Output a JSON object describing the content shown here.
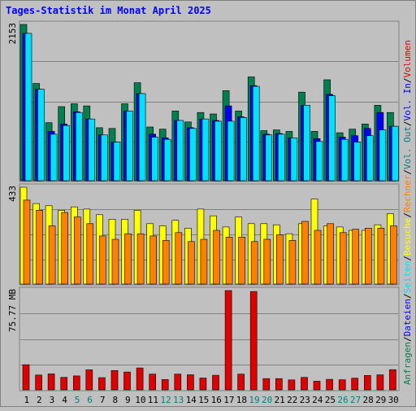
{
  "title": "Tages-Statistik im Monat April 2025",
  "colors": {
    "background": "#c0c0c0",
    "title": "#0000ff",
    "anfragen": "#007f4f",
    "dateien": "#0000ff",
    "seiten": "#00e0ff",
    "besuche": "#ffff00",
    "rechner": "#ff8000",
    "vol_in": "#0000ff",
    "volumen": "#e00000",
    "weekend_label": "#007f7f",
    "weekday_label": "#000000"
  },
  "right_legend": [
    {
      "text": "Anfragen",
      "color": "#007f4f"
    },
    {
      "text": "/",
      "color": "#000000"
    },
    {
      "text": "Dateien",
      "color": "#0000ff"
    },
    {
      "text": "/",
      "color": "#000000"
    },
    {
      "text": "Seiten",
      "color": "#00e0ff"
    },
    {
      "text": "/",
      "color": "#000000"
    },
    {
      "text": "Besuche",
      "color": "#ffff00"
    },
    {
      "text": "/",
      "color": "#000000"
    },
    {
      "text": "Rechner",
      "color": "#ff8000"
    },
    {
      "text": "/",
      "color": "#000000"
    },
    {
      "text": "Vol. Out",
      "color": "#007f7f"
    },
    {
      "text": "/",
      "color": "#000000"
    },
    {
      "text": "Vol. In",
      "color": "#0000ff"
    },
    {
      "text": "/",
      "color": "#000000"
    },
    {
      "text": "Volumen",
      "color": "#e00000"
    }
  ],
  "chart_data": {
    "type": "bar",
    "x": [
      "1",
      "2",
      "3",
      "4",
      "5",
      "6",
      "7",
      "8",
      "9",
      "10",
      "11",
      "12",
      "13",
      "14",
      "15",
      "16",
      "17",
      "18",
      "19",
      "20",
      "21",
      "22",
      "23",
      "24",
      "25",
      "26",
      "27",
      "28",
      "29",
      "30"
    ],
    "weekend_days": [
      "5",
      "6",
      "12",
      "13",
      "19",
      "20",
      "26",
      "27"
    ],
    "panels": [
      {
        "name": "hits",
        "max_label": "2153",
        "ymax": 2153,
        "series": [
          {
            "name": "Anfragen",
            "values": [
              2153,
              1340,
              800,
              1020,
              1060,
              1030,
              730,
              720,
              1060,
              1350,
              740,
              710,
              960,
              810,
              940,
              920,
              1240,
              960,
              1430,
              690,
              700,
              680,
              1220,
              680,
              1390,
              660,
              710,
              780,
              1040,
              940
            ]
          },
          {
            "name": "Dateien",
            "values": [
              2030,
              1260,
              680,
              780,
              950,
              850,
              630,
              530,
              960,
              1200,
              640,
              590,
              830,
              730,
              850,
              830,
              1030,
              880,
              1310,
              640,
              650,
              590,
              1040,
              580,
              1190,
              600,
              620,
              720,
              940,
              750
            ]
          },
          {
            "name": "Seiten",
            "values": [
              2030,
              1260,
              640,
              760,
              940,
              850,
              630,
              530,
              960,
              1200,
              600,
              570,
              830,
              720,
              850,
              820,
              820,
              870,
              1300,
              630,
              640,
              590,
              1040,
              540,
              1170,
              570,
              530,
              620,
              700,
              750
            ]
          }
        ]
      },
      {
        "name": "visits",
        "max_label": "433",
        "ymax": 433,
        "series": [
          {
            "name": "Besuche",
            "values": [
              433,
              360,
              350,
              330,
              345,
              335,
              310,
              290,
              290,
              330,
              270,
              260,
              285,
              250,
              335,
              305,
              255,
              300,
              270,
              270,
              265,
              225,
              270,
              380,
              260,
              255,
              240,
              240,
              265,
              315
            ]
          },
          {
            "name": "Rechner",
            "values": [
              375,
              330,
              260,
              320,
              300,
              270,
              215,
              200,
              225,
              225,
              215,
              195,
              230,
              190,
              200,
              240,
              210,
              210,
              190,
              200,
              220,
              195,
              280,
              240,
              270,
              230,
              245,
              250,
              250,
              260
            ]
          }
        ]
      },
      {
        "name": "volume",
        "max_label": "75.77 MB",
        "ymax": 75.77,
        "series": [
          {
            "name": "Volumen",
            "values": [
              19.2,
              11.3,
              12.2,
              9.5,
              10.6,
              15.3,
              9.3,
              14.7,
              13.6,
              16.7,
              12.0,
              7.8,
              12.0,
              11.5,
              9.0,
              11.1,
              75.77,
              12.0,
              75.0,
              8.6,
              8.6,
              7.6,
              9.5,
              6.6,
              8.0,
              7.7,
              8.9,
              11.0,
              11.4,
              15.4
            ]
          }
        ]
      }
    ]
  }
}
